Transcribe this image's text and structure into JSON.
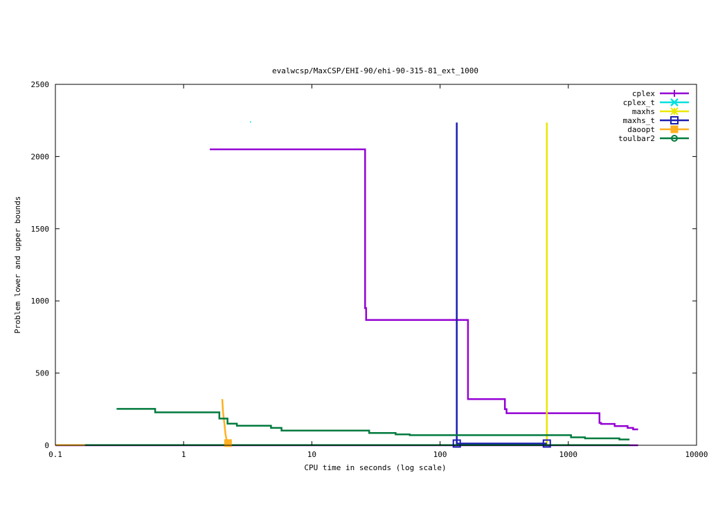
{
  "chart_data": {
    "type": "line",
    "title": "evalwcsp/MaxCSP/EHI-90/ehi-90-315-81_ext_1000",
    "xlabel": "CPU time in seconds (log scale)",
    "ylabel": "Problem lower and upper bounds",
    "xscale": "log",
    "xlim": [
      0.1,
      10000
    ],
    "ylim": [
      0,
      2500
    ],
    "grid": false,
    "legend_position": "top-right",
    "x_ticks": [
      {
        "value": 0.1,
        "label": "0.1"
      },
      {
        "value": 1,
        "label": "1"
      },
      {
        "value": 10,
        "label": "10"
      },
      {
        "value": 100,
        "label": "100"
      },
      {
        "value": 1000,
        "label": "1000"
      },
      {
        "value": 10000,
        "label": "10000"
      }
    ],
    "y_ticks": [
      {
        "value": 0,
        "label": "0"
      },
      {
        "value": 500,
        "label": "500"
      },
      {
        "value": 1000,
        "label": "1000"
      },
      {
        "value": 1500,
        "label": "1500"
      },
      {
        "value": 2000,
        "label": "2000"
      },
      {
        "value": 2500,
        "label": "2500"
      }
    ],
    "series": [
      {
        "name": "cplex",
        "color": "#9400d3",
        "marker": "plus",
        "segments": [
          [
            [
              1.6,
              2050
            ],
            [
              26,
              2050
            ],
            [
              26,
              950
            ],
            [
              26.5,
              950
            ],
            [
              26.5,
              868
            ],
            [
              165,
              868
            ],
            [
              165,
              320
            ],
            [
              320,
              320
            ],
            [
              320,
              250
            ],
            [
              330,
              250
            ],
            [
              330,
              222
            ],
            [
              1750,
              222
            ],
            [
              1750,
              155
            ],
            [
              1800,
              155
            ],
            [
              1800,
              148
            ],
            [
              2300,
              148
            ],
            [
              2300,
              133
            ],
            [
              2900,
              133
            ],
            [
              2900,
              120
            ],
            [
              3200,
              120
            ],
            [
              3200,
              110
            ],
            [
              3500,
              110
            ]
          ],
          [
            [
              0.1,
              0
            ],
            [
              3500,
              0
            ]
          ]
        ],
        "markers": []
      },
      {
        "name": "cplex_t",
        "color": "#00e0e0",
        "marker": "cross",
        "segments": [
          [
            [
              3.3,
              2240
            ],
            [
              3.35,
              2240
            ]
          ]
        ],
        "markers": []
      },
      {
        "name": "maxhs",
        "color": "#e8e800",
        "marker": "star",
        "segments": [
          [
            [
              680,
              0
            ],
            [
              680,
              2235
            ]
          ]
        ],
        "markers": []
      },
      {
        "name": "maxhs_t",
        "color": "#1c1cb0",
        "marker": "square",
        "segments": [
          [
            [
              135,
              2235
            ],
            [
              135,
              0
            ]
          ],
          [
            [
              135,
              12
            ],
            [
              680,
              12
            ]
          ]
        ],
        "markers": [
          [
            135,
            12
          ],
          [
            680,
            12
          ]
        ]
      },
      {
        "name": "daoopt",
        "color": "#ffb020",
        "marker": "filled-square",
        "segments": [
          [
            [
              2.0,
              320
            ],
            [
              2.03,
              230
            ],
            [
              2.08,
              150
            ],
            [
              2.12,
              80
            ],
            [
              2.16,
              40
            ],
            [
              2.2,
              15
            ]
          ],
          [
            [
              0.1,
              1
            ],
            [
              2.2,
              1
            ]
          ]
        ],
        "markers": [
          [
            2.22,
            15
          ]
        ]
      },
      {
        "name": "toulbar2",
        "color": "#007a3d",
        "marker": "circle",
        "segments": [
          [
            [
              0.3,
              252
            ],
            [
              0.6,
              252
            ],
            [
              0.6,
              228
            ],
            [
              1.9,
              228
            ],
            [
              1.9,
              185
            ],
            [
              2.2,
              185
            ],
            [
              2.2,
              150
            ],
            [
              2.6,
              150
            ],
            [
              2.6,
              135
            ],
            [
              4.8,
              135
            ],
            [
              4.8,
              120
            ],
            [
              5.8,
              120
            ],
            [
              5.8,
              102
            ],
            [
              28,
              102
            ],
            [
              28,
              85
            ],
            [
              45,
              85
            ],
            [
              45,
              75
            ],
            [
              58,
              75
            ],
            [
              58,
              70
            ],
            [
              1050,
              70
            ],
            [
              1050,
              55
            ],
            [
              1350,
              55
            ],
            [
              1350,
              48
            ],
            [
              2500,
              48
            ],
            [
              2500,
              40
            ],
            [
              3000,
              40
            ]
          ],
          [
            [
              0.17,
              1
            ],
            [
              3000,
              1
            ]
          ]
        ],
        "markers": []
      }
    ]
  }
}
